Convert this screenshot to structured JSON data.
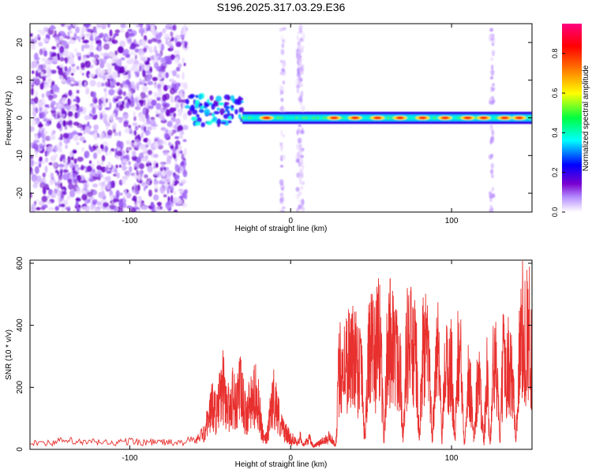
{
  "title": "S196.2025.317.03.29.E36",
  "chart_data": [
    {
      "type": "heatmap",
      "title": "S196.2025.317.03.29.E36",
      "xlabel": "Height of straight line (km)",
      "ylabel": "Frequency (Hz)",
      "xlim": [
        -162,
        150
      ],
      "ylim": [
        -25,
        25
      ],
      "xticks": [
        -100,
        0,
        100
      ],
      "yticks": [
        -20,
        -10,
        0,
        10,
        20
      ],
      "colorbar": {
        "label": "Normalized spectral amplitude",
        "range": [
          0,
          0.95
        ],
        "ticks": [
          "0.0",
          "0.2",
          "0.4",
          "0.6",
          "0.8"
        ],
        "tick_values": [
          0.0,
          0.2,
          0.4,
          0.6,
          0.8
        ],
        "stops": [
          "#ffffff",
          "#7a00d0",
          "#0000ff",
          "#00ffff",
          "#00ff00",
          "#ffff00",
          "#ff8000",
          "#ff0000",
          "#ff0080"
        ]
      },
      "regions": [
        {
          "name": "broadband noise",
          "x": [
            -162,
            -65
          ],
          "y": [
            -25,
            25
          ]
        },
        {
          "name": "onset scatter",
          "x": [
            -65,
            -30
          ],
          "y": [
            -2,
            6
          ]
        },
        {
          "name": "narrowband line",
          "x": [
            -30,
            150
          ],
          "y": [
            -1.5,
            1.5
          ]
        }
      ],
      "vertical_streaks_km": [
        -5,
        5,
        7,
        125
      ],
      "hot_spots_km": [
        -15,
        27,
        40,
        54,
        68,
        82,
        96,
        110,
        120,
        133,
        142
      ]
    },
    {
      "type": "line",
      "xlabel": "Height of straight line (km)",
      "ylabel": "SNR (10 * v/v)",
      "xlim": [
        -162,
        150
      ],
      "ylim": [
        0,
        610
      ],
      "xticks": [
        -100,
        0,
        100
      ],
      "yticks": [
        0,
        200,
        400,
        600
      ],
      "series": [
        {
          "name": "SNR",
          "color": "#e8302e",
          "x": [
            -162,
            -150,
            -140,
            -130,
            -120,
            -110,
            -100,
            -90,
            -80,
            -70,
            -60,
            -55,
            -52,
            -50,
            -48,
            -46,
            -44,
            -42,
            -40,
            -38,
            -36,
            -34,
            -32,
            -30,
            -28,
            -26,
            -24,
            -22,
            -20,
            -18,
            -16,
            -14,
            -12,
            -10,
            -8,
            -6,
            -4,
            -2,
            0,
            2,
            4,
            6,
            8,
            10,
            12,
            14,
            16,
            18,
            20,
            22,
            24,
            26,
            28,
            30,
            32,
            34,
            36,
            38,
            40,
            42,
            44,
            46,
            48,
            50,
            52,
            54,
            56,
            58,
            60,
            62,
            64,
            66,
            68,
            70,
            72,
            74,
            76,
            78,
            80,
            82,
            84,
            86,
            88,
            90,
            92,
            94,
            96,
            98,
            100,
            102,
            104,
            106,
            108,
            110,
            112,
            114,
            116,
            118,
            120,
            122,
            124,
            126,
            128,
            130,
            132,
            134,
            136,
            138,
            140,
            142,
            144,
            146,
            148,
            150
          ],
          "values": [
            25,
            20,
            28,
            22,
            24,
            20,
            26,
            22,
            24,
            20,
            30,
            70,
            120,
            180,
            210,
            160,
            240,
            300,
            220,
            190,
            260,
            200,
            300,
            240,
            160,
            200,
            220,
            260,
            240,
            90,
            30,
            80,
            210,
            250,
            180,
            110,
            90,
            70,
            50,
            30,
            20,
            40,
            15,
            25,
            35,
            10,
            15,
            20,
            30,
            50,
            60,
            25,
            15,
            360,
            420,
            400,
            450,
            420,
            480,
            380,
            460,
            30,
            420,
            470,
            430,
            500,
            520,
            30,
            460,
            530,
            500,
            420,
            470,
            30,
            480,
            510,
            450,
            430,
            30,
            470,
            460,
            420,
            30,
            450,
            430,
            30,
            400,
            350,
            410,
            30,
            440,
            380,
            30,
            330,
            280,
            30,
            320,
            300,
            30,
            340,
            30,
            400,
            380,
            30,
            410,
            390,
            400,
            330,
            30,
            420,
            560,
            520,
            580,
            400
          ]
        }
      ]
    }
  ]
}
